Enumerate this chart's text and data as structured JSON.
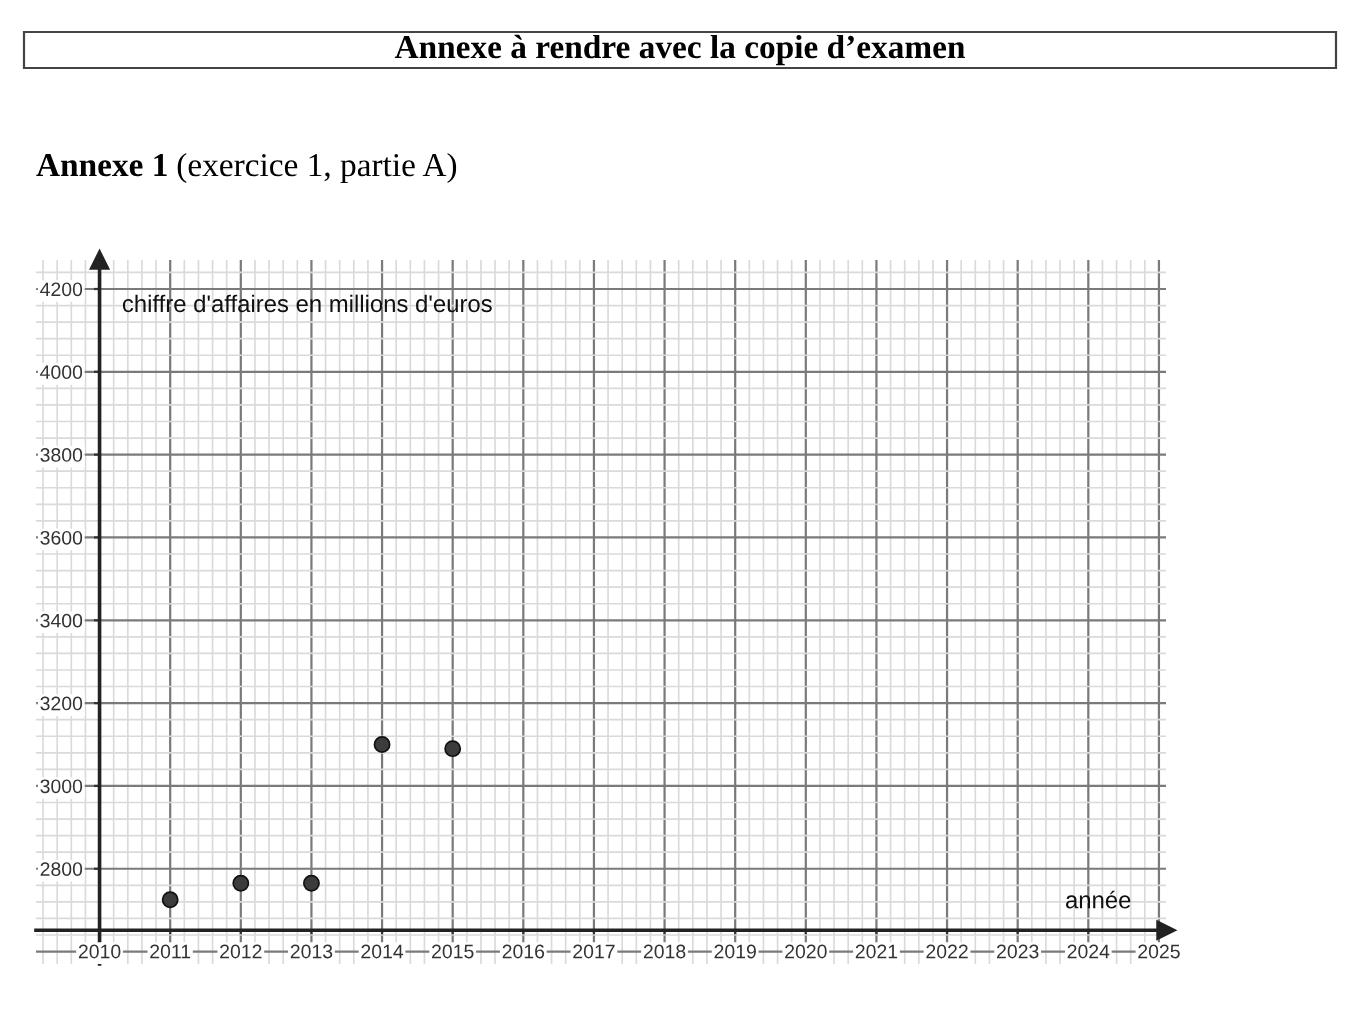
{
  "chart_data": {
    "type": "scatter",
    "title": "Annexe à rendre avec la copie d’examen",
    "subtitle": "Annexe 1 (exercice 1, partie A)",
    "xlabel": "année",
    "ylabel": "chiffre d'affaires en millions d'euros",
    "x": [
      2011,
      2012,
      2013,
      2014,
      2015
    ],
    "values": [
      2725,
      2765,
      2765,
      3100,
      3090
    ],
    "color": "#3c3c3c",
    "marker": "circle",
    "xlim": [
      2009.1,
      2025.1
    ],
    "ylim": [
      2570,
      4270
    ],
    "xticks": [
      2010,
      2011,
      2012,
      2013,
      2014,
      2015,
      2016,
      2017,
      2018,
      2019,
      2020,
      2021,
      2022,
      2023,
      2024,
      2025
    ],
    "yticks": [
      {
        "value": 2600,
        "label": null
      },
      2800,
      3000,
      3200,
      3400,
      3600,
      3800,
      4000,
      4200
    ],
    "grid": true
  }
}
